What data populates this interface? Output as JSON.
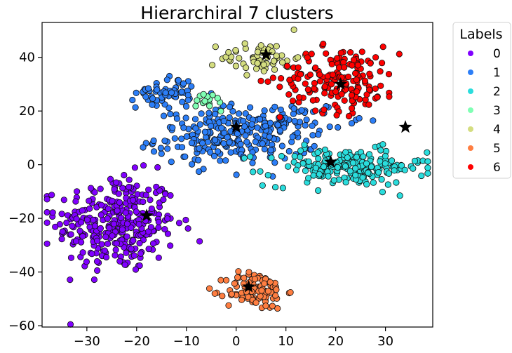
{
  "chart_data": {
    "type": "scatter",
    "title": "Hierarchiral 7 clusters",
    "xlabel": "",
    "ylabel": "",
    "xlim": [
      -39,
      39.5
    ],
    "ylim": [
      -60.5,
      53
    ],
    "xticks": [
      -30,
      -20,
      -10,
      0,
      10,
      20,
      30
    ],
    "yticks": [
      -60,
      -40,
      -20,
      0,
      20,
      40
    ],
    "xtick_labels": [
      "−30",
      "−20",
      "−10",
      "0",
      "10",
      "20",
      "30"
    ],
    "ytick_labels": [
      "−60",
      "−40",
      "−20",
      "0",
      "20",
      "40"
    ],
    "grid": false,
    "legend": {
      "title": "Labels",
      "placement": "outside-upper-right",
      "entries": [
        {
          "label": "0",
          "color": "#8000ff"
        },
        {
          "label": "1",
          "color": "#2c7ef7"
        },
        {
          "label": "2",
          "color": "#2adddd"
        },
        {
          "label": "3",
          "color": "#80ffb4"
        },
        {
          "label": "4",
          "color": "#d4dd80"
        },
        {
          "label": "5",
          "color": "#ff7e41"
        },
        {
          "label": "6",
          "color": "#ff0000"
        }
      ]
    },
    "series": [
      {
        "label": "0",
        "color": "#8000ff",
        "center": [
          -24,
          -22
        ],
        "spread": [
          6,
          9
        ],
        "n": 320
      },
      {
        "label": "1",
        "color": "#2c7ef7",
        "center": [
          0,
          10
        ],
        "spread": [
          8,
          5
        ],
        "n": 240
      },
      {
        "label": "1",
        "color": "#2c7ef7",
        "center": [
          -14,
          27
        ],
        "spread": [
          3,
          3
        ],
        "n": 60
      },
      {
        "label": "1",
        "color": "#2c7ef7",
        "center": [
          10,
          17
        ],
        "spread": [
          6,
          3
        ],
        "n": 50
      },
      {
        "label": "2",
        "color": "#2adddd",
        "center": [
          22,
          -1
        ],
        "spread": [
          8,
          3.5
        ],
        "n": 200
      },
      {
        "label": "3",
        "color": "#80ffb4",
        "center": [
          -5,
          24
        ],
        "spread": [
          1.5,
          2
        ],
        "n": 15
      },
      {
        "label": "4",
        "color": "#d4dd80",
        "center": [
          5,
          40
        ],
        "spread": [
          4,
          3
        ],
        "n": 60
      },
      {
        "label": "5",
        "color": "#ff7e41",
        "center": [
          4,
          -47
        ],
        "spread": [
          3,
          3.5
        ],
        "n": 110
      },
      {
        "label": "6",
        "color": "#ff0000",
        "center": [
          21,
          32
        ],
        "spread": [
          6,
          6
        ],
        "n": 170
      }
    ],
    "centroids": [
      {
        "x": -18,
        "y": -19
      },
      {
        "x": 0,
        "y": 14
      },
      {
        "x": 6,
        "y": 41
      },
      {
        "x": 21,
        "y": 30
      },
      {
        "x": 19,
        "y": 1
      },
      {
        "x": 34,
        "y": 14
      },
      {
        "x": 2.5,
        "y": -45.5
      }
    ]
  }
}
